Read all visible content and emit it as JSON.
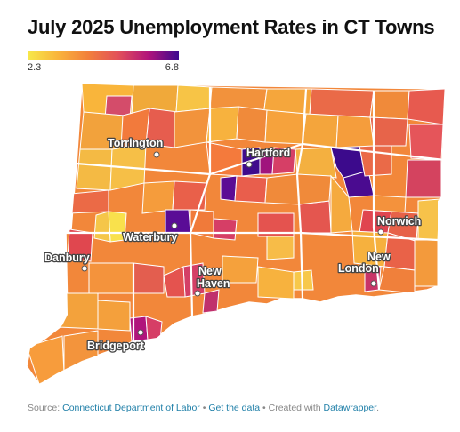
{
  "header": {
    "title": "July 2025 Unemployment Rates in CT Towns"
  },
  "legend": {
    "min_label": "2.3",
    "max_label": "6.8",
    "min_value": 2.3,
    "max_value": 6.8,
    "colors": [
      "#f7e94a",
      "#f9b43b",
      "#f2803b",
      "#e2505a",
      "#b1137b",
      "#3c0a8f"
    ]
  },
  "cities": {
    "torrington": "Torrington",
    "hartford": "Hartford",
    "waterbury": "Waterbury",
    "norwich": "Norwich",
    "danbury": "Danbury",
    "new_london_1": "New",
    "new_london_2": "London",
    "new_haven_1": "New",
    "new_haven_2": "Haven",
    "bridgeport": "Bridgeport"
  },
  "footer": {
    "source_prefix": "Source:",
    "source_link": "Connecticut Department of Labor",
    "sep1": "•",
    "data_link": "Get the data",
    "sep2": "•",
    "created_text": "Created with",
    "tool_link": "Datawrapper"
  }
}
